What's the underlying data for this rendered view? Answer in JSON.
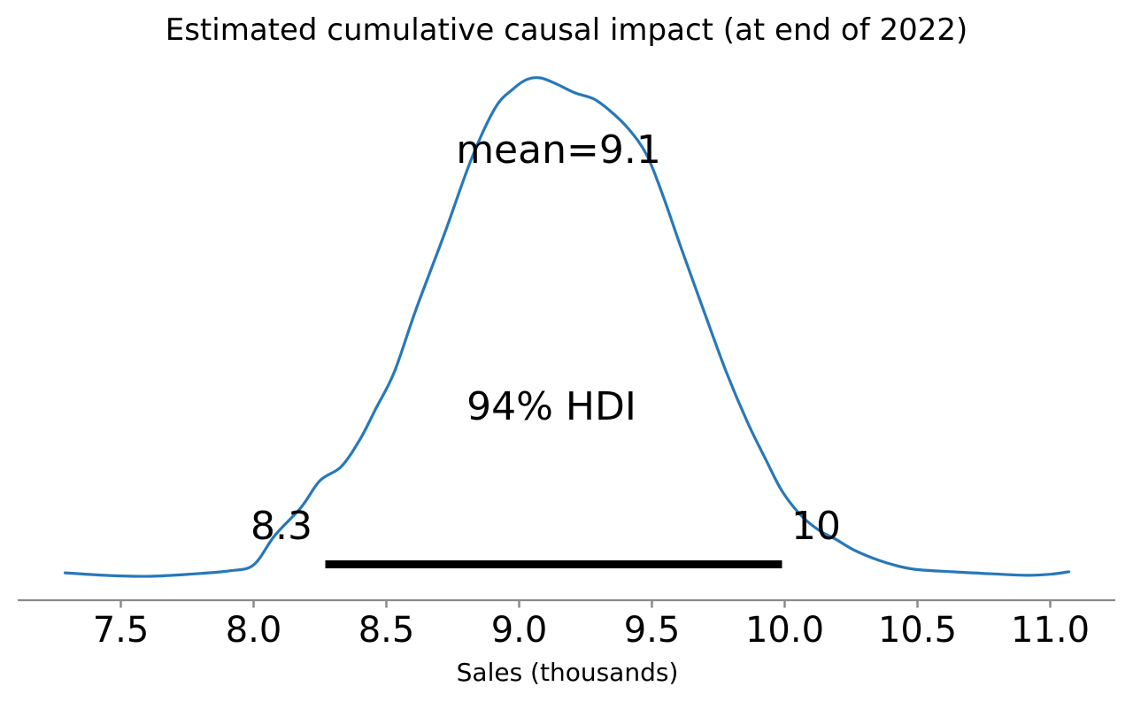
{
  "title": "Estimated cumulative causal impact (at end of 2022)",
  "xlabel": "Sales (thousands)",
  "annotations": {
    "mean_label": "mean=9.1",
    "hdi_label": "94% HDI",
    "hdi_lower_label": "8.3",
    "hdi_upper_label": "10"
  },
  "chart_data": {
    "type": "kde",
    "title": "Estimated cumulative causal impact (at end of 2022)",
    "xlabel": "Sales (thousands)",
    "ylabel": "",
    "legend": "none",
    "grid": false,
    "xlim": [
      7.1,
      11.25
    ],
    "x_tick_values": [
      7.5,
      8.0,
      8.5,
      9.0,
      9.5,
      10.0,
      10.5,
      11.0
    ],
    "x_tick_labels": [
      "7.5",
      "8.0",
      "8.5",
      "9.0",
      "9.5",
      "10.0",
      "10.5",
      "11.0"
    ],
    "mean": 9.1,
    "hdi": {
      "prob": 0.94,
      "lower": 8.3,
      "upper": 10
    },
    "hdi_bar": {
      "from": 8.27,
      "to": 9.99
    },
    "curve": {
      "x": [
        7.29,
        7.44,
        7.61,
        7.78,
        7.91,
        8.0,
        8.08,
        8.18,
        8.25,
        8.33,
        8.4,
        8.46,
        8.53,
        8.61,
        8.72,
        8.82,
        8.91,
        8.98,
        9.03,
        9.08,
        9.14,
        9.21,
        9.28,
        9.34,
        9.41,
        9.48,
        9.54,
        9.61,
        9.7,
        9.78,
        9.86,
        9.93,
        9.99,
        10.06,
        10.13,
        10.19,
        10.26,
        10.33,
        10.41,
        10.49,
        10.63,
        10.78,
        10.91,
        11.0,
        11.07
      ],
      "relative_density": [
        0.007,
        0.002,
        0.0,
        0.005,
        0.011,
        0.023,
        0.082,
        0.139,
        0.192,
        0.22,
        0.274,
        0.336,
        0.41,
        0.533,
        0.689,
        0.837,
        0.94,
        0.979,
        0.997,
        1.0,
        0.988,
        0.97,
        0.958,
        0.935,
        0.899,
        0.846,
        0.766,
        0.659,
        0.526,
        0.41,
        0.309,
        0.233,
        0.171,
        0.123,
        0.092,
        0.075,
        0.053,
        0.037,
        0.023,
        0.014,
        0.009,
        0.005,
        0.002,
        0.004,
        0.009
      ]
    },
    "colors": {
      "curve": "#2878b8",
      "hdi_bar": "#000000",
      "axis": "#8a8a8a",
      "text": "#000000"
    }
  }
}
